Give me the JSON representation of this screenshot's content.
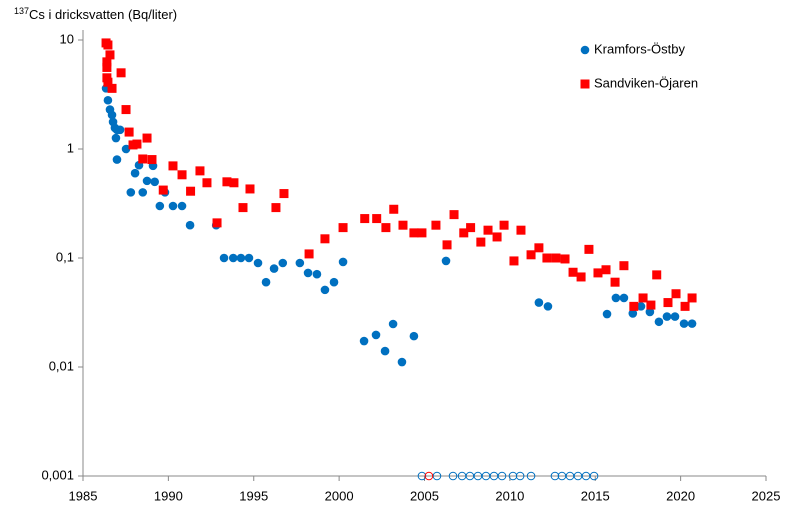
{
  "chart_data": {
    "type": "scatter",
    "y_label_sup": "137",
    "y_label": "Cs i dricksvatten (Bq/liter)",
    "log_y": true,
    "grid": false,
    "legend": "upper right",
    "xlim": [
      1985,
      2025
    ],
    "xticks": [
      1985,
      1990,
      1995,
      2000,
      2005,
      2010,
      2015,
      2020,
      2025
    ],
    "ylim": [
      0.001,
      10
    ],
    "yticks": [
      {
        "value": 0.001,
        "label": "0,001"
      },
      {
        "value": 0.01,
        "label": "0,01"
      },
      {
        "value": 0.1,
        "label": "0,1"
      },
      1,
      10
    ],
    "series": [
      {
        "name": "Kramfors-Östby",
        "color": "#0070c0",
        "marker": "circle",
        "x": [
          1986.35,
          1986.46,
          1986.58,
          1986.7,
          1986.76,
          1986.87,
          1986.93,
          1986.99,
          1987.17,
          1986.99,
          1987.52,
          1987.8,
          1988.05,
          1988.28,
          1988.5,
          1988.75,
          1989.1,
          1989.2,
          1989.5,
          1989.8,
          1990.27,
          1990.8,
          1991.27,
          1992.8,
          1993.26,
          1993.8,
          1994.25,
          1994.72,
          1995.25,
          1995.72,
          1996.19,
          1996.7,
          1997.7,
          1998.18,
          1998.7,
          1999.17,
          1999.7,
          2000.23,
          2001.46,
          2002.16,
          2002.69,
          2003.16,
          2003.68,
          2004.38,
          2006.26,
          2011.7,
          2012.23,
          2015.69,
          2016.21,
          2016.68,
          2017.2,
          2017.68,
          2018.2,
          2018.73,
          2019.2,
          2019.67,
          2020.2,
          2020.67
        ],
        "values": [
          3.6,
          2.8,
          2.3,
          2.05,
          1.77,
          1.56,
          1.26,
          1.5,
          1.5,
          0.8,
          1.0,
          0.4,
          0.6,
          0.71,
          0.4,
          0.51,
          0.7,
          0.5,
          0.3,
          0.4,
          0.3,
          0.3,
          0.2,
          0.2,
          0.1,
          0.1,
          0.1,
          0.1,
          0.09,
          0.06,
          0.08,
          0.09,
          0.09,
          0.073,
          0.071,
          0.051,
          0.06,
          0.092,
          0.0173,
          0.0197,
          0.014,
          0.0248,
          0.0111,
          0.0192,
          0.094,
          0.039,
          0.036,
          0.0306,
          0.043,
          0.043,
          0.031,
          0.036,
          0.032,
          0.026,
          0.029,
          0.029,
          0.025,
          0.025
        ],
        "nondetect_x": [
          2004.85,
          2005.73,
          2006.67,
          2007.2,
          2007.66,
          2008.13,
          2008.6,
          2009.07,
          2009.54,
          2010.18,
          2010.6,
          2011.24,
          2012.64,
          2013.05,
          2013.52,
          2013.99,
          2014.46,
          2014.93
        ]
      },
      {
        "name": "Sandviken-Öjaren",
        "color": "#ff0000",
        "marker": "square",
        "x": [
          1986.35,
          1986.46,
          1986.4,
          1986.4,
          1986.58,
          1986.4,
          1986.46,
          1986.7,
          1987.23,
          1987.52,
          1987.7,
          1987.93,
          1988.16,
          1988.5,
          1988.75,
          1989.04,
          1989.7,
          1990.27,
          1990.8,
          1991.3,
          1991.85,
          1992.26,
          1992.85,
          1993.43,
          1993.84,
          1994.37,
          1994.78,
          1996.3,
          1996.77,
          1998.24,
          1999.17,
          2000.23,
          2001.5,
          2002.2,
          2002.74,
          2003.2,
          2003.74,
          2004.38,
          2004.85,
          2005.67,
          2006.32,
          2006.73,
          2007.3,
          2007.7,
          2008.3,
          2008.72,
          2009.25,
          2009.66,
          2010.24,
          2010.65,
          2011.24,
          2011.7,
          2012.17,
          2012.7,
          2013.23,
          2013.7,
          2014.17,
          2014.63,
          2015.16,
          2015.63,
          2016.16,
          2016.68,
          2017.26,
          2017.8,
          2018.26,
          2018.6,
          2019.26,
          2019.73,
          2020.26,
          2020.67
        ],
        "values": [
          9.4,
          9.0,
          6.3,
          5.6,
          7.3,
          4.5,
          4.1,
          3.6,
          5.0,
          2.3,
          1.43,
          1.09,
          1.11,
          0.81,
          1.26,
          0.8,
          0.42,
          0.7,
          0.58,
          0.41,
          0.63,
          0.49,
          0.21,
          0.5,
          0.49,
          0.29,
          0.43,
          0.29,
          0.39,
          0.109,
          0.15,
          0.19,
          0.23,
          0.23,
          0.19,
          0.28,
          0.2,
          0.17,
          0.17,
          0.2,
          0.132,
          0.25,
          0.17,
          0.19,
          0.14,
          0.18,
          0.156,
          0.2,
          0.094,
          0.18,
          0.107,
          0.124,
          0.1,
          0.1,
          0.098,
          0.074,
          0.067,
          0.12,
          0.073,
          0.078,
          0.06,
          0.085,
          0.036,
          0.043,
          0.037,
          0.07,
          0.039,
          0.047,
          0.036,
          0.043
        ],
        "nondetect_x": [
          2005.26
        ]
      }
    ]
  }
}
